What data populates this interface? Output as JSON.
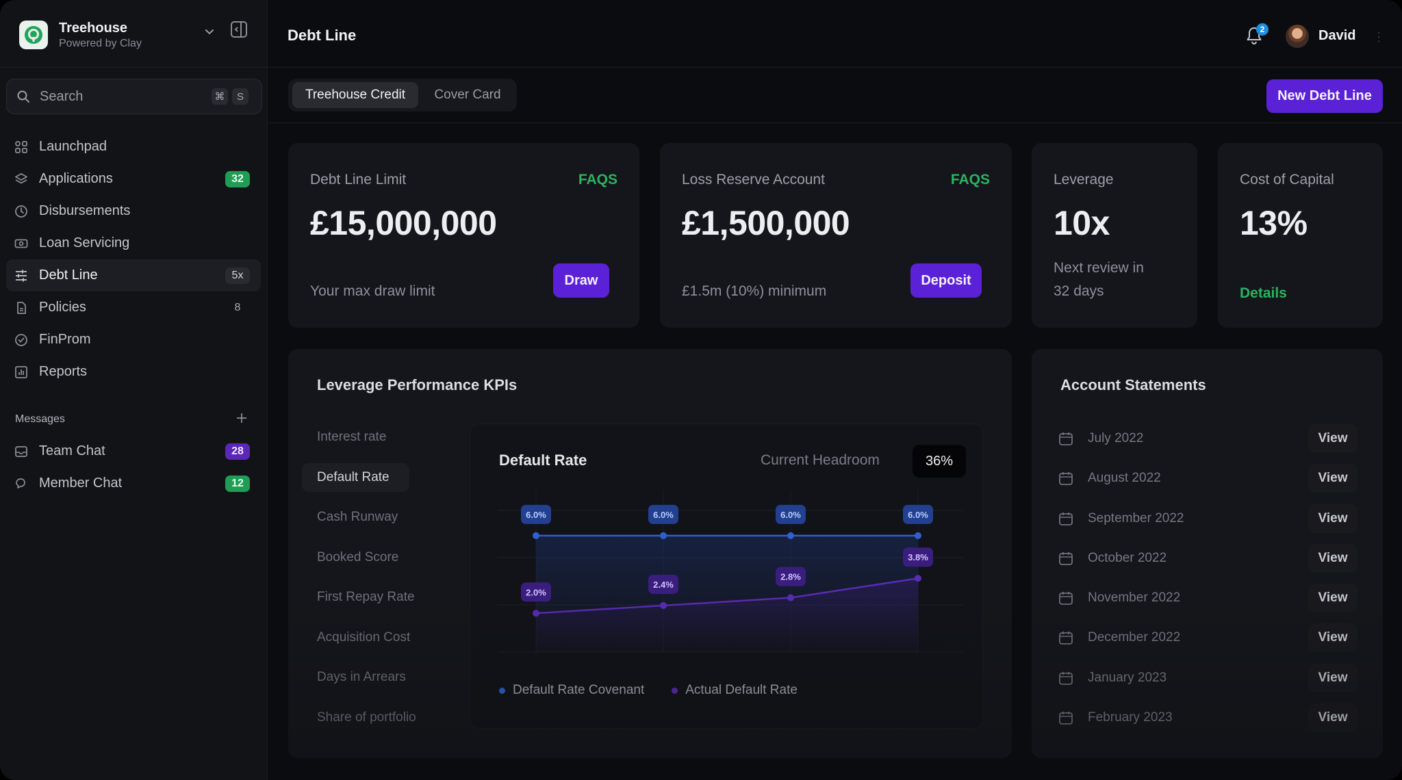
{
  "workspace": {
    "name": "Treehouse",
    "subtitle": "Powered by Clay"
  },
  "search": {
    "placeholder": "Search",
    "shortcut_mod": "⌘",
    "shortcut_key": "S"
  },
  "nav": [
    {
      "label": "Launchpad",
      "icon": "grid-icon",
      "badge": ""
    },
    {
      "label": "Applications",
      "icon": "layers-icon",
      "badge": "32",
      "badge_style": "green"
    },
    {
      "label": "Disbursements",
      "icon": "clock-icon",
      "badge": ""
    },
    {
      "label": "Loan Servicing",
      "icon": "banknote-icon",
      "badge": ""
    },
    {
      "label": "Debt Line",
      "icon": "sliders-icon",
      "badge": "5x",
      "badge_style": "dark",
      "active": true
    },
    {
      "label": "Policies",
      "icon": "document-icon",
      "badge": "8",
      "badge_style": "plain"
    },
    {
      "label": "FinProm",
      "icon": "check-circle-icon",
      "badge": ""
    },
    {
      "label": "Reports",
      "icon": "bar-chart-icon",
      "badge": ""
    }
  ],
  "messages": {
    "heading": "Messages",
    "items": [
      {
        "label": "Team Chat",
        "icon": "inbox-icon",
        "badge": "28",
        "badge_style": "purple"
      },
      {
        "label": "Member Chat",
        "icon": "chat-icon",
        "badge": "12",
        "badge_style": "green"
      }
    ]
  },
  "header": {
    "title": "Debt Line",
    "notifications": "2",
    "user": "David"
  },
  "tabs": {
    "active": "Treehouse Credit",
    "inactive": "Cover Card"
  },
  "toolbar": {
    "new_button": "New Debt Line"
  },
  "cards": {
    "limit": {
      "label": "Debt Line Limit",
      "link": "FAQS",
      "value": "£15,000,000",
      "foot": "Your max draw limit",
      "button": "Draw"
    },
    "reserve": {
      "label": "Loss Reserve Account",
      "link": "FAQS",
      "value": "£1,500,000",
      "foot": "£1.5m (10%) minimum",
      "button": "Deposit"
    },
    "leverage": {
      "label": "Leverage",
      "value": "10x",
      "foot_line1": "Next review in",
      "foot_line2": "32 days"
    },
    "capital": {
      "label": "Cost of Capital",
      "value": "13%",
      "link": "Details"
    }
  },
  "kpis": {
    "title": "Leverage Performance KPIs",
    "items": [
      "Interest rate",
      "Default Rate",
      "Cash Runway",
      "Booked Score",
      "First Repay Rate",
      "Acquisition Cost",
      "Days in Arrears",
      "Share of portfolio"
    ],
    "active_index": 1
  },
  "chart_head": {
    "title": "Default Rate",
    "headroom_label": "Current Headroom",
    "headroom_value": "36%"
  },
  "chart_data": {
    "type": "line",
    "title": "Default Rate",
    "x": [
      "1",
      "2",
      "3",
      "4"
    ],
    "series": [
      {
        "name": "Default Rate Covenant",
        "values": [
          6.0,
          6.0,
          6.0,
          6.0
        ],
        "labels": [
          "6.0%",
          "6.0%",
          "6.0%",
          "6.0%"
        ],
        "color": "#2f5fd1"
      },
      {
        "name": "Actual Default Rate",
        "values": [
          2.0,
          2.4,
          2.8,
          3.8
        ],
        "labels": [
          "2.0%",
          "2.4%",
          "2.8%",
          "3.8%"
        ],
        "color": "#5a2bb5"
      }
    ],
    "ylim": [
      0,
      7.3
    ],
    "grid": true,
    "legend": "bottom-left"
  },
  "statements": {
    "title": "Account Statements",
    "view_label": "View",
    "months": [
      "July 2022",
      "August 2022",
      "September 2022",
      "October 2022",
      "November 2022",
      "December 2022",
      "January 2023",
      "February 2023"
    ]
  },
  "colors": {
    "accent": "#5b21d6",
    "success": "#2bb35f",
    "badge_green": "#1f9d55",
    "badge_purple": "#5b27b8",
    "background": "#0b0c10",
    "card": "#15161b"
  }
}
